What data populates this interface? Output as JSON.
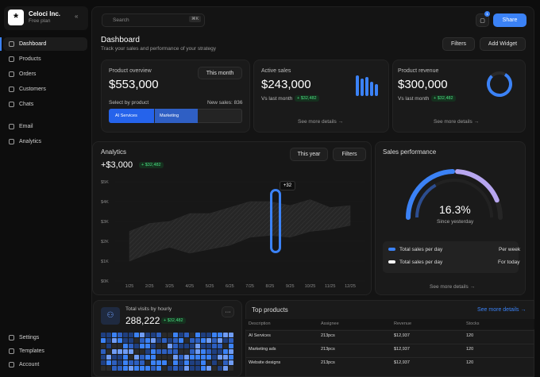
{
  "sidebar": {
    "company": "Celoci Inc.",
    "plan": "Free plan",
    "nav": [
      "Dashboard",
      "Products",
      "Orders",
      "Customers",
      "Chats",
      "Email",
      "Analytics"
    ],
    "footer": [
      "Settings",
      "Templates",
      "Account"
    ]
  },
  "topbar": {
    "search": "Search",
    "shortcut": "⌘K",
    "notifications": "1",
    "share": "Share"
  },
  "header": {
    "title": "Dashboard",
    "subtitle": "Track your sales and performance of your strategy",
    "filters": "Filters",
    "add_widget": "Add Widget"
  },
  "product_overview": {
    "title": "Product overview",
    "value": "$553,000",
    "period": "This month",
    "select_label": "Select by product",
    "new_sales": "New sales: 836",
    "segments": [
      "AI Services",
      "Marketing"
    ]
  },
  "active_sales": {
    "title": "Active sales",
    "value": "$243,000",
    "comparison": "Vs last month",
    "change": "+ $32,482",
    "link": "See more details"
  },
  "product_revenue": {
    "title": "Product revenue",
    "value": "$300,000",
    "comparison": "Vs last month",
    "change": "+ $32,482",
    "link": "See more details"
  },
  "analytics": {
    "title": "Analytics",
    "value": "+$3,000",
    "change": "+ $32,482",
    "period": "This year",
    "filters": "Filters",
    "tooltip": "+32",
    "chart": {
      "type": "area",
      "x": [
        "1/25",
        "2/25",
        "3/25",
        "4/25",
        "5/25",
        "6/25",
        "7/25",
        "8/25",
        "9/25",
        "10/25",
        "11/25",
        "12/25"
      ],
      "upper": [
        2.5,
        2.9,
        3.0,
        3.4,
        3.4,
        3.7,
        4.0,
        4.0,
        3.8,
        4.1,
        3.7,
        3.8
      ],
      "lower": [
        1.0,
        1.4,
        1.7,
        1.4,
        1.6,
        1.8,
        2.2,
        2.3,
        2.2,
        2.5,
        2.6,
        2.8
      ],
      "ylim": [
        0,
        5
      ],
      "yticks": [
        {
          "value": 0,
          "label": "$0K"
        },
        {
          "value": 1,
          "label": "$1K"
        },
        {
          "value": 2,
          "label": "$2K"
        },
        {
          "value": 3,
          "label": "$3K"
        },
        {
          "value": 4,
          "label": "$4K"
        },
        {
          "value": 5,
          "label": "$5K"
        }
      ]
    }
  },
  "sales_performance": {
    "title": "Sales performance",
    "value": "16.3%",
    "caption": "Since yesterday",
    "legend": [
      {
        "label": "Total sales per day",
        "period": "Per week"
      },
      {
        "label": "Total sales per day",
        "period": "For today"
      }
    ],
    "link": "See more details"
  },
  "visits": {
    "title": "Total visits by hourly",
    "value": "288,222",
    "change": "+ $32,482",
    "menu": "···"
  },
  "top_products": {
    "title": "Top products",
    "link": "See more details",
    "columns": [
      "Description",
      "Assignee",
      "Revenue",
      "Stocks"
    ],
    "rows": [
      [
        "AI Services",
        "213pcs",
        "$12,937",
        "120"
      ],
      [
        "Marketing ads",
        "213pcs",
        "$12,937",
        "120"
      ],
      [
        "Website designs",
        "213pcs",
        "$12,937",
        "120"
      ]
    ]
  }
}
